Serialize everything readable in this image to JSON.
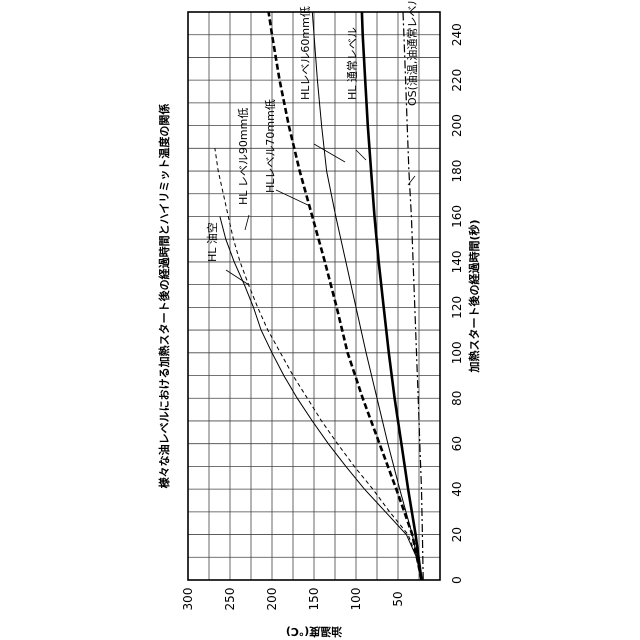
{
  "chart_data": {
    "type": "line",
    "title": "様々な油レベルにおける加熱スタート後の経過時間とハイリミット温度の関係",
    "xlabel": "加熱スタート後の経過時間(秒)",
    "ylabel": "油温度(℃)",
    "xlim": [
      0,
      250
    ],
    "ylim": [
      0,
      300
    ],
    "x_ticks": [
      0,
      20,
      40,
      60,
      80,
      100,
      120,
      140,
      160,
      180,
      200,
      220,
      240
    ],
    "y_ticks": [
      50,
      100,
      150,
      200,
      250,
      300
    ],
    "grid": true,
    "orientation": "rotated-90-counterclockwise",
    "series": [
      {
        "name": "HL 油空",
        "style": "solid-thin",
        "points": [
          [
            0,
            22
          ],
          [
            10,
            28
          ],
          [
            20,
            40
          ],
          [
            30,
            65
          ],
          [
            40,
            90
          ],
          [
            50,
            112
          ],
          [
            60,
            133
          ],
          [
            70,
            152
          ],
          [
            80,
            170
          ],
          [
            90,
            186
          ],
          [
            100,
            200
          ],
          [
            110,
            213
          ],
          [
            120,
            222
          ],
          [
            130,
            233
          ],
          [
            140,
            245
          ],
          [
            150,
            255
          ],
          [
            160,
            262
          ]
        ]
      },
      {
        "name": "HL レベル90mm低",
        "style": "dashed-thin",
        "points": [
          [
            0,
            22
          ],
          [
            10,
            28
          ],
          [
            20,
            38
          ],
          [
            30,
            60
          ],
          [
            40,
            80
          ],
          [
            50,
            102
          ],
          [
            60,
            122
          ],
          [
            70,
            141
          ],
          [
            80,
            158
          ],
          [
            90,
            175
          ],
          [
            100,
            190
          ],
          [
            110,
            205
          ],
          [
            120,
            217
          ],
          [
            130,
            228
          ],
          [
            140,
            238
          ],
          [
            150,
            246
          ],
          [
            160,
            252
          ],
          [
            170,
            258
          ],
          [
            180,
            264
          ],
          [
            190,
            268
          ]
        ]
      },
      {
        "name": "HLレベル70mm低",
        "style": "dashed-thick",
        "points": [
          [
            0,
            22
          ],
          [
            20,
            33
          ],
          [
            40,
            52
          ],
          [
            60,
            72
          ],
          [
            80,
            92
          ],
          [
            100,
            110
          ],
          [
            120,
            123
          ],
          [
            140,
            137
          ],
          [
            160,
            152
          ],
          [
            180,
            167
          ],
          [
            200,
            180
          ],
          [
            220,
            191
          ],
          [
            240,
            200
          ],
          [
            250,
            204
          ]
        ]
      },
      {
        "name": "HLレベル60mm低",
        "style": "solid-thin",
        "points": [
          [
            0,
            22
          ],
          [
            20,
            33
          ],
          [
            40,
            48
          ],
          [
            60,
            62
          ],
          [
            80,
            75
          ],
          [
            100,
            88
          ],
          [
            120,
            100
          ],
          [
            140,
            112
          ],
          [
            160,
            124
          ],
          [
            180,
            135
          ],
          [
            200,
            141
          ],
          [
            220,
            146
          ],
          [
            240,
            150
          ],
          [
            250,
            152
          ]
        ]
      },
      {
        "name": "HL 通常レベル",
        "style": "solid-thick",
        "points": [
          [
            0,
            22
          ],
          [
            20,
            29
          ],
          [
            40,
            38
          ],
          [
            60,
            46
          ],
          [
            80,
            54
          ],
          [
            100,
            61
          ],
          [
            120,
            67
          ],
          [
            140,
            73
          ],
          [
            160,
            78
          ],
          [
            180,
            82
          ],
          [
            200,
            86
          ],
          [
            220,
            89
          ],
          [
            240,
            92
          ],
          [
            250,
            93
          ]
        ]
      },
      {
        "name": "OS(油温,油通常レベル)",
        "style": "dash-dot",
        "points": [
          [
            0,
            20
          ],
          [
            20,
            21
          ],
          [
            40,
            22
          ],
          [
            60,
            24
          ],
          [
            80,
            26
          ],
          [
            100,
            28
          ],
          [
            120,
            30
          ],
          [
            140,
            32
          ],
          [
            160,
            34
          ],
          [
            180,
            37
          ],
          [
            200,
            39
          ],
          [
            220,
            41
          ],
          [
            240,
            43
          ],
          [
            250,
            44
          ]
        ]
      }
    ]
  }
}
